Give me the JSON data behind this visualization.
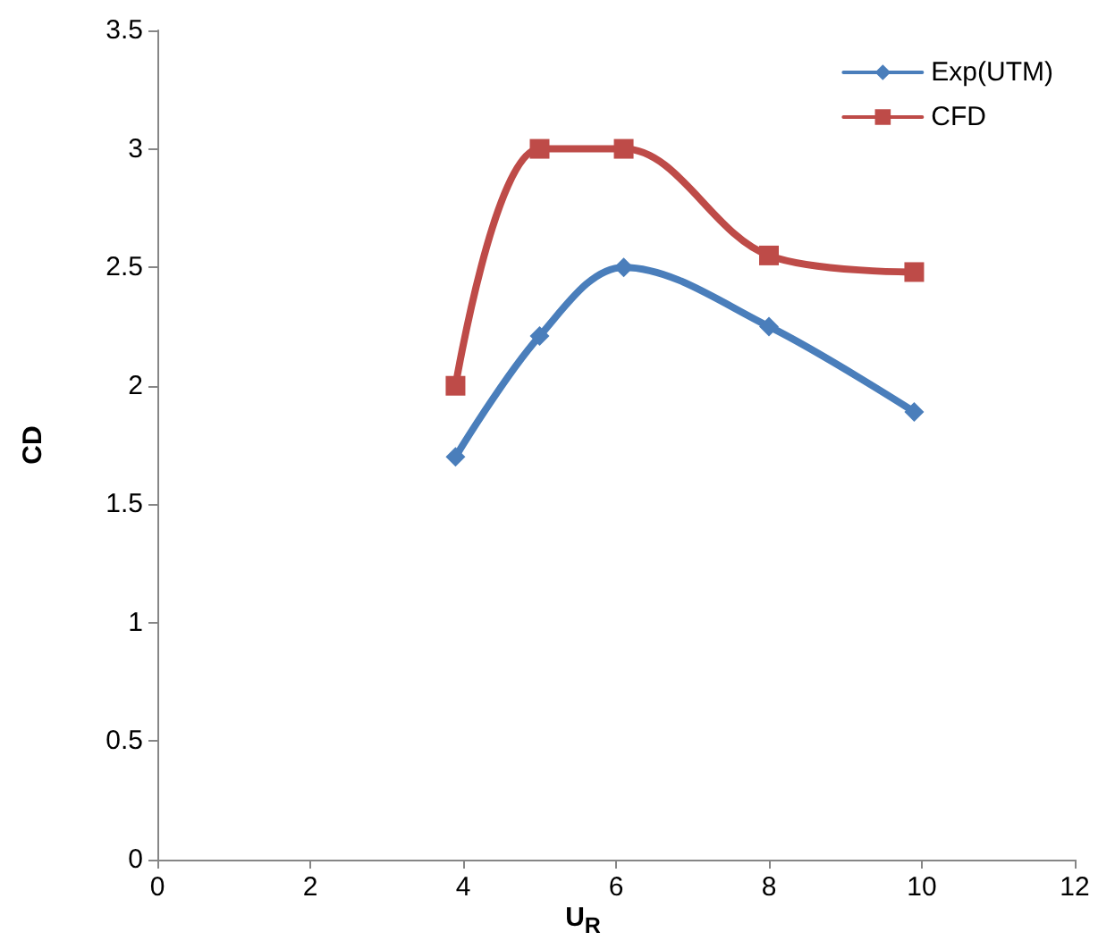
{
  "chart_data": {
    "type": "line",
    "xlabel": "U$_{R}$",
    "ylabel": "CD",
    "xlim": [
      0,
      12
    ],
    "xticks": [
      0,
      2,
      4,
      6,
      8,
      10,
      12
    ],
    "ylim": [
      0,
      3.5
    ],
    "yticks": [
      0,
      0.5,
      1,
      1.5,
      2,
      2.5,
      3,
      3.5
    ],
    "series": [
      {
        "name": "Exp(UTM)",
        "color": "#4a7ebb",
        "marker": "diamond",
        "x": [
          3.9,
          5.0,
          6.1,
          8.0,
          9.9
        ],
        "values": [
          1.7,
          2.21,
          2.5,
          2.25,
          1.89
        ]
      },
      {
        "name": "CFD",
        "color": "#be4b48",
        "marker": "square",
        "x": [
          3.9,
          5.0,
          6.1,
          8.0,
          9.9
        ],
        "values": [
          2.0,
          3.0,
          3.0,
          2.55,
          2.48
        ]
      }
    ],
    "grid": false,
    "legend": "top right",
    "line_style": "solid"
  }
}
